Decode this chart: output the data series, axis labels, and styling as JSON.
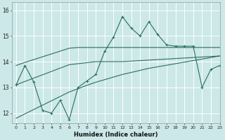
{
  "xlabel": "Humidex (Indice chaleur)",
  "background_color": "#cce8e8",
  "grid_color": "#ffffff",
  "line_color": "#2a6e60",
  "xlim": [
    -0.5,
    23
  ],
  "ylim": [
    11.6,
    16.3
  ],
  "yticks": [
    12,
    13,
    14,
    15,
    16
  ],
  "xticks": [
    0,
    1,
    2,
    3,
    4,
    5,
    6,
    7,
    8,
    9,
    10,
    11,
    12,
    13,
    14,
    15,
    16,
    17,
    18,
    19,
    20,
    21,
    22,
    23
  ],
  "xtick_labels": [
    "0",
    "1",
    "2",
    "3",
    "4",
    "5",
    "6",
    "7",
    "8",
    "9",
    "10",
    "11",
    "12",
    "13",
    "14",
    "15",
    "16",
    "17",
    "18",
    "19",
    "20",
    "21",
    "22",
    "23"
  ],
  "zigzag": [
    13.1,
    13.85,
    13.2,
    12.1,
    12.0,
    12.5,
    11.75,
    13.0,
    13.25,
    13.5,
    14.4,
    14.95,
    15.75,
    15.3,
    15.0,
    15.55,
    15.05,
    14.65,
    14.6,
    14.6,
    14.6,
    13.0,
    13.7,
    13.85
  ],
  "trend_upper": [
    13.85,
    13.97,
    14.08,
    14.19,
    14.3,
    14.41,
    14.52,
    14.55,
    14.55,
    14.55,
    14.55,
    14.55,
    14.55,
    14.55,
    14.55,
    14.55,
    14.55,
    14.55,
    14.55,
    14.55,
    14.55,
    14.55,
    14.55,
    14.55
  ],
  "trend_mid_upper": [
    13.1,
    13.23,
    13.36,
    13.49,
    13.62,
    13.75,
    13.88,
    13.92,
    13.96,
    14.0,
    14.0,
    14.0,
    14.0,
    14.02,
    14.04,
    14.06,
    14.08,
    14.1,
    14.12,
    14.14,
    14.16,
    14.18,
    14.2,
    14.22
  ],
  "trend_lower": [
    11.8,
    11.97,
    12.14,
    12.31,
    12.48,
    12.65,
    12.82,
    12.95,
    13.08,
    13.2,
    13.3,
    13.4,
    13.5,
    13.58,
    13.66,
    13.74,
    13.8,
    13.86,
    13.92,
    13.98,
    14.04,
    14.1,
    14.16,
    14.22
  ]
}
